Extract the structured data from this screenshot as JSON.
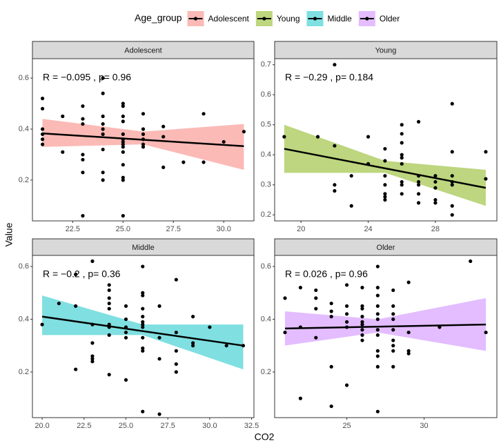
{
  "legend_title": "Age_group",
  "xlabel": "CO2",
  "ylabel": "Value",
  "chart_data": [
    {
      "type": "scatter",
      "title": "Adolescent",
      "annotation": "R = −0.095 , p= 0.96",
      "xlim": [
        20.5,
        31.5
      ],
      "ylim": [
        0.04,
        0.676
      ],
      "xticks": [
        22.5,
        {
          "value": 25,
          "label": "25.0"
        },
        27.5,
        {
          "value": 30,
          "label": "30.0"
        }
      ],
      "yticks": [
        0.2,
        0.4,
        0.6
      ],
      "point_color": "#000000",
      "line_color": "#000000",
      "series": [
        {
          "name": "Adolescent",
          "color": "#F8766D",
          "x": [
            21,
            21,
            21,
            21,
            21,
            21,
            22,
            22,
            23,
            23,
            23,
            23,
            23,
            23,
            23,
            24,
            24,
            24,
            24,
            24,
            24,
            24,
            24,
            24,
            25,
            25,
            25,
            25,
            25,
            25,
            25,
            25,
            25,
            25,
            25,
            25,
            25,
            25,
            26,
            26,
            26,
            26,
            26,
            26,
            27,
            27,
            27,
            28,
            29,
            29,
            30,
            31
          ],
          "values": [
            0.52,
            0.48,
            0.4,
            0.38,
            0.36,
            0.34,
            0.45,
            0.31,
            0.49,
            0.44,
            0.42,
            0.3,
            0.28,
            0.23,
            0.06,
            0.6,
            0.54,
            0.45,
            0.42,
            0.4,
            0.38,
            0.32,
            0.23,
            0.2,
            0.5,
            0.49,
            0.45,
            0.43,
            0.38,
            0.36,
            0.35,
            0.34,
            0.33,
            0.31,
            0.26,
            0.21,
            0.2,
            0.06,
            0.46,
            0.4,
            0.38,
            0.36,
            0.34,
            0.33,
            0.41,
            0.37,
            0.25,
            0.27,
            0.46,
            0.27,
            0.35,
            0.39
          ]
        }
      ],
      "fit": {
        "x": [
          21,
          31
        ],
        "y": [
          0.383,
          0.333
        ]
      },
      "band": {
        "x": [
          21,
          26,
          31
        ],
        "lower": [
          0.33,
          0.34,
          0.24
        ],
        "upper": [
          0.44,
          0.39,
          0.42
        ]
      }
    },
    {
      "type": "scatter",
      "title": "Young",
      "annotation": "R = −0.29 , p= 0.184",
      "xlim": [
        18.43,
        31.66
      ],
      "ylim": [
        0.18,
        0.72
      ],
      "xticks": [
        20,
        24,
        28
      ],
      "yticks": [
        0.2,
        0.3,
        0.4,
        0.5,
        0.6,
        0.7
      ],
      "point_color": "#000000",
      "line_color": "#000000",
      "series": [
        {
          "name": "Young",
          "color": "#7CAE00",
          "x": [
            19,
            21,
            22,
            22,
            22,
            22,
            23,
            23,
            24,
            24,
            25,
            25,
            25,
            25,
            25,
            25,
            25,
            26,
            26,
            26,
            26,
            26,
            26,
            26,
            26,
            26,
            27,
            27,
            27,
            27,
            27,
            27,
            28,
            28,
            28,
            28,
            28,
            29,
            29,
            29,
            29,
            29,
            29,
            29,
            31,
            31
          ],
          "values": [
            0.46,
            0.46,
            0.7,
            0.43,
            0.3,
            0.28,
            0.33,
            0.23,
            0.46,
            0.37,
            0.42,
            0.38,
            0.33,
            0.3,
            0.27,
            0.26,
            0.25,
            0.5,
            0.47,
            0.44,
            0.4,
            0.39,
            0.37,
            0.31,
            0.3,
            0.27,
            0.51,
            0.33,
            0.31,
            0.3,
            0.27,
            0.24,
            0.33,
            0.31,
            0.29,
            0.25,
            0.24,
            0.57,
            0.41,
            0.33,
            0.31,
            0.3,
            0.23,
            0.2,
            0.41,
            0.32
          ]
        }
      ],
      "fit": {
        "x": [
          19,
          31
        ],
        "y": [
          0.42,
          0.29
        ]
      },
      "band": {
        "x": [
          19,
          25,
          31
        ],
        "lower": [
          0.34,
          0.34,
          0.23
        ],
        "upper": [
          0.5,
          0.38,
          0.35
        ]
      }
    },
    {
      "type": "scatter",
      "title": "Middle",
      "annotation": "R = −0.2 , p= 0.36",
      "xlim": [
        19.42,
        32.64
      ],
      "ylim": [
        0.027,
        0.642
      ],
      "xticks": [
        {
          "value": 20,
          "label": "20.0"
        },
        22.5,
        {
          "value": 25,
          "label": "25.0"
        },
        27.5,
        {
          "value": 30,
          "label": "30.0"
        },
        32.5
      ],
      "yticks": [
        0.2,
        0.4,
        0.6
      ],
      "point_color": "#000000",
      "line_color": "#000000",
      "series": [
        {
          "name": "Middle",
          "color": "#00BFC4",
          "x": [
            20,
            21,
            22,
            22,
            22,
            23,
            23,
            23,
            23,
            23,
            23,
            24,
            24,
            24,
            24,
            24,
            24,
            24,
            24,
            24,
            25,
            25,
            25,
            25,
            25,
            25,
            26,
            26,
            26,
            26,
            26,
            26,
            26,
            26,
            26,
            26,
            26,
            26,
            27,
            27,
            27,
            27,
            28,
            28,
            28,
            28,
            28,
            29,
            29,
            29,
            30,
            31,
            32
          ],
          "values": [
            0.38,
            0.46,
            0.57,
            0.45,
            0.21,
            0.62,
            0.38,
            0.31,
            0.26,
            0.25,
            0.24,
            0.53,
            0.51,
            0.48,
            0.46,
            0.44,
            0.38,
            0.37,
            0.34,
            0.19,
            0.45,
            0.4,
            0.37,
            0.35,
            0.33,
            0.17,
            0.6,
            0.5,
            0.49,
            0.44,
            0.41,
            0.39,
            0.38,
            0.37,
            0.33,
            0.29,
            0.28,
            0.05,
            0.45,
            0.33,
            0.25,
            0.04,
            0.55,
            0.35,
            0.28,
            0.23,
            0.2,
            0.41,
            0.31,
            0.3,
            0.37,
            0.3,
            0.3
          ]
        }
      ],
      "fit": {
        "x": [
          20,
          32
        ],
        "y": [
          0.41,
          0.3
        ]
      },
      "band": {
        "x": [
          20,
          26,
          32
        ],
        "lower": [
          0.34,
          0.34,
          0.21
        ],
        "upper": [
          0.49,
          0.38,
          0.38
        ]
      }
    },
    {
      "type": "scatter",
      "title": "Older",
      "annotation": "R = 0.026 , p= 0.96",
      "xlim": [
        20.33,
        34.71
      ],
      "ylim": [
        0.027,
        0.642
      ],
      "xticks": [
        25,
        30
      ],
      "yticks": [
        0.2,
        0.4,
        0.6
      ],
      "point_color": "#000000",
      "line_color": "#000000",
      "series": [
        {
          "name": "Older",
          "color": "#C77CFF",
          "x": [
            21,
            21,
            22,
            22,
            22,
            23,
            23,
            23,
            23,
            24,
            24,
            24,
            24,
            24,
            25,
            25,
            25,
            25,
            25,
            25,
            26,
            26,
            26,
            26,
            26,
            26,
            26,
            26,
            26,
            27,
            27,
            27,
            27,
            27,
            27,
            27,
            27,
            27,
            27,
            27,
            27,
            28,
            28,
            28,
            28,
            28,
            28,
            28,
            28,
            28,
            29,
            29,
            29,
            29,
            31,
            33,
            34
          ],
          "values": [
            0.48,
            0.35,
            0.52,
            0.37,
            0.1,
            0.51,
            0.48,
            0.44,
            0.33,
            0.46,
            0.43,
            0.41,
            0.22,
            0.07,
            0.53,
            0.45,
            0.42,
            0.39,
            0.37,
            0.15,
            0.52,
            0.45,
            0.44,
            0.41,
            0.39,
            0.38,
            0.36,
            0.34,
            0.32,
            0.6,
            0.52,
            0.49,
            0.45,
            0.42,
            0.4,
            0.36,
            0.34,
            0.28,
            0.26,
            0.22,
            0.05,
            0.51,
            0.45,
            0.42,
            0.4,
            0.36,
            0.32,
            0.3,
            0.28,
            0.22,
            0.54,
            0.35,
            0.28,
            0.27,
            0.37,
            0.62,
            0.35
          ]
        }
      ],
      "fit": {
        "x": [
          21,
          34
        ],
        "y": [
          0.365,
          0.38
        ]
      },
      "band": {
        "x": [
          21,
          27,
          34
        ],
        "lower": [
          0.3,
          0.35,
          0.28
        ],
        "upper": [
          0.43,
          0.4,
          0.48
        ]
      }
    }
  ]
}
